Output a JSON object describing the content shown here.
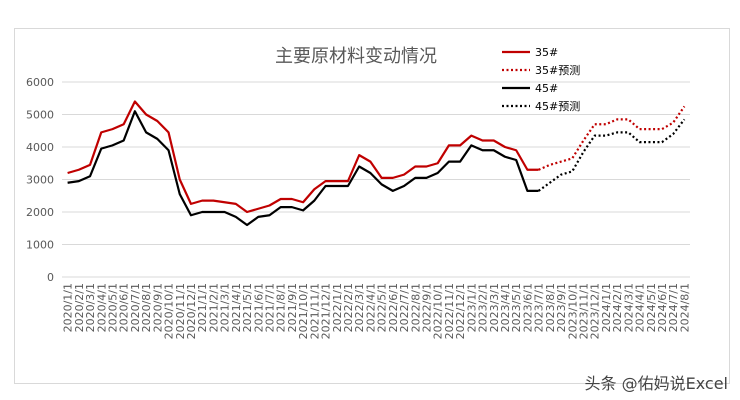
{
  "chart_data": {
    "type": "line",
    "title": "主要原材料变动情况",
    "xlabel": "",
    "ylabel": "",
    "ylim": [
      0,
      6000
    ],
    "yticks": [
      0,
      1000,
      2000,
      3000,
      4000,
      5000,
      6000
    ],
    "grid": "horizontal",
    "legend_position": "top-right",
    "categories": [
      "2020/1/1",
      "2020/2/1",
      "2020/3/1",
      "2020/4/1",
      "2020/5/1",
      "2020/6/1",
      "2020/7/1",
      "2020/8/1",
      "2020/9/1",
      "2020/10/1",
      "2020/11/1",
      "2020/12/1",
      "2021/1/1",
      "2021/2/1",
      "2021/3/1",
      "2021/4/1",
      "2021/5/1",
      "2021/6/1",
      "2021/7/1",
      "2021/8/1",
      "2021/9/1",
      "2021/10/1",
      "2021/11/1",
      "2021/12/1",
      "2022/1/1",
      "2022/2/1",
      "2022/3/1",
      "2022/4/1",
      "2022/5/1",
      "2022/6/1",
      "2022/7/1",
      "2022/8/1",
      "2022/9/1",
      "2022/10/1",
      "2022/11/1",
      "2022/12/1",
      "2023/1/1",
      "2023/2/1",
      "2023/3/1",
      "2023/4/1",
      "2023/5/1",
      "2023/6/1",
      "2023/7/1",
      "2023/8/1",
      "2023/9/1",
      "2023/10/1",
      "2023/11/1",
      "2023/12/1",
      "2024/1/1",
      "2024/2/1",
      "2024/3/1",
      "2024/4/1",
      "2024/5/1",
      "2024/6/1",
      "2024/7/1",
      "2024/8/1"
    ],
    "series": [
      {
        "name": "35#",
        "color": "#c00000",
        "style": "solid",
        "values": [
          3200,
          3300,
          3450,
          4450,
          4550,
          4700,
          5400,
          5000,
          4800,
          4450,
          3000,
          2250,
          2350,
          2350,
          2300,
          2250,
          2000,
          2100,
          2200,
          2400,
          2400,
          2300,
          2700,
          2950,
          2950,
          2950,
          3750,
          3550,
          3050,
          3050,
          3150,
          3400,
          3400,
          3500,
          4050,
          4050,
          4350,
          4200,
          4200,
          4000,
          3900,
          3300,
          3300,
          null,
          null,
          null,
          null,
          null,
          null,
          null,
          null,
          null,
          null,
          null,
          null,
          null
        ]
      },
      {
        "name": "35#预测",
        "color": "#c00000",
        "style": "dotted",
        "values": [
          null,
          null,
          null,
          null,
          null,
          null,
          null,
          null,
          null,
          null,
          null,
          null,
          null,
          null,
          null,
          null,
          null,
          null,
          null,
          null,
          null,
          null,
          null,
          null,
          null,
          null,
          null,
          null,
          null,
          null,
          null,
          null,
          null,
          null,
          null,
          null,
          null,
          null,
          null,
          null,
          null,
          null,
          3300,
          3450,
          3550,
          3650,
          4200,
          4700,
          4700,
          4850,
          4850,
          4550,
          4550,
          4550,
          4750,
          5250
        ]
      },
      {
        "name": "45#",
        "color": "#000000",
        "style": "solid",
        "values": [
          2900,
          2950,
          3100,
          3950,
          4050,
          4200,
          5100,
          4450,
          4250,
          3900,
          2550,
          1900,
          2000,
          2000,
          2000,
          1850,
          1600,
          1850,
          1900,
          2150,
          2150,
          2050,
          2350,
          2800,
          2800,
          2800,
          3400,
          3200,
          2850,
          2650,
          2800,
          3050,
          3050,
          3200,
          3550,
          3550,
          4050,
          3900,
          3900,
          3700,
          3600,
          2650,
          2650,
          null,
          null,
          null,
          null,
          null,
          null,
          null,
          null,
          null,
          null,
          null,
          null,
          null
        ]
      },
      {
        "name": "45#预测",
        "color": "#000000",
        "style": "dotted",
        "values": [
          null,
          null,
          null,
          null,
          null,
          null,
          null,
          null,
          null,
          null,
          null,
          null,
          null,
          null,
          null,
          null,
          null,
          null,
          null,
          null,
          null,
          null,
          null,
          null,
          null,
          null,
          null,
          null,
          null,
          null,
          null,
          null,
          null,
          null,
          null,
          null,
          null,
          null,
          null,
          null,
          null,
          null,
          2650,
          2900,
          3150,
          3250,
          3850,
          4350,
          4350,
          4450,
          4450,
          4150,
          4150,
          4150,
          4400,
          4850
        ]
      }
    ]
  },
  "watermark": "头条 @佑妈说Excel"
}
